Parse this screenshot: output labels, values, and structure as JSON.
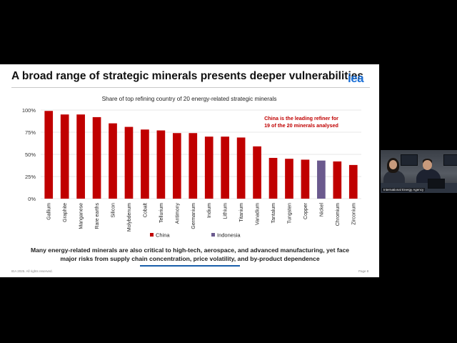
{
  "slide": {
    "title": "A broad range of strategic minerals presents deeper vulnerabilities",
    "logo": "iea",
    "footnote_line1": "Many energy-related minerals are also critical to high-tech, aerospace, and advanced manufacturing, yet face",
    "footnote_line2": "major risks from supply chain concentration, price volatility, and by-product dependence",
    "copyright": "IEA 2025. All rights reserved.",
    "page_number": "Page 8"
  },
  "video_feed": {
    "caption": "International Energy Agency"
  },
  "colors": {
    "china": "#c00000",
    "indonesia": "#6b5a8e",
    "brand": "#1b6fd6"
  },
  "chart_data": {
    "type": "bar",
    "title": "Share of top refining country of 20 energy-related strategic minerals",
    "annotation_line1": "China is the leading refiner for",
    "annotation_line2": "19 of the 20 minerals analysed",
    "categories": [
      "Gallium",
      "Graphite",
      "Manganese",
      "Rare earths",
      "Silicon",
      "Molybdenum",
      "Cobalt",
      "Tellurium",
      "Antimony",
      "Germanium",
      "Indium",
      "Lithium",
      "Titanium",
      "Vanadium",
      "Tantalum",
      "Tungsten",
      "Copper",
      "Nickel",
      "Chromium",
      "Zirconium"
    ],
    "values": [
      99,
      95,
      95,
      92,
      85,
      81,
      78,
      77,
      74,
      74,
      70,
      70,
      69,
      59,
      46,
      45,
      44,
      43,
      42,
      38
    ],
    "country": [
      "China",
      "China",
      "China",
      "China",
      "China",
      "China",
      "China",
      "China",
      "China",
      "China",
      "China",
      "China",
      "China",
      "China",
      "China",
      "China",
      "China",
      "Indonesia",
      "China",
      "China"
    ],
    "ylim": [
      0,
      100
    ],
    "yticks": [
      0,
      25,
      50,
      75,
      100
    ],
    "ytick_labels": [
      "0%",
      "25%",
      "50%",
      "75%",
      "100%"
    ],
    "legend": [
      {
        "name": "China",
        "color": "#c00000"
      },
      {
        "name": "Indonesia",
        "color": "#6b5a8e"
      }
    ],
    "legend_position": "bottom"
  }
}
